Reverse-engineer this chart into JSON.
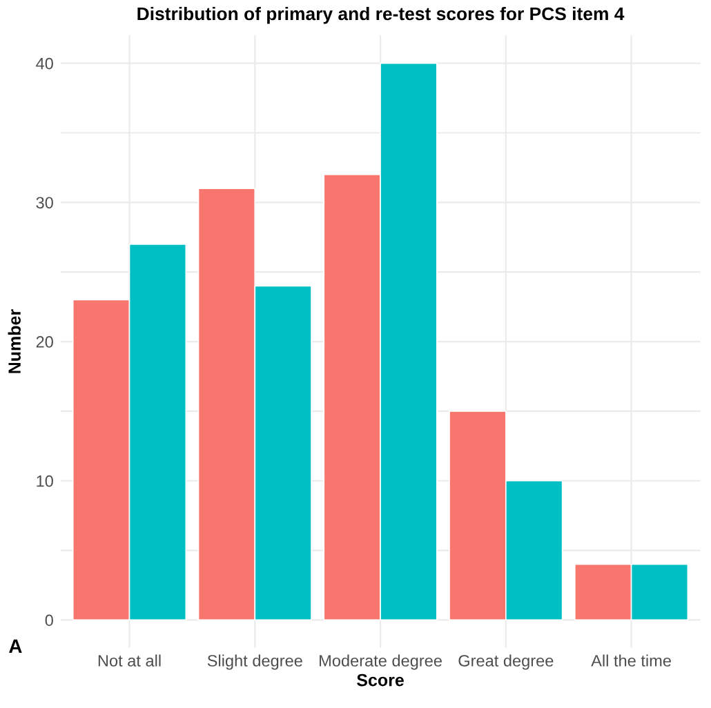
{
  "chart_data": {
    "type": "bar",
    "title": "Distribution of primary and re-test scores for PCS item 4",
    "xlabel": "Score",
    "ylabel": "Number",
    "categories": [
      "Not at all",
      "Slight degree",
      "Moderate degree",
      "Great degree",
      "All the time"
    ],
    "series": [
      {
        "color": "#f8766d",
        "values": [
          23,
          31,
          32,
          15,
          4
        ]
      },
      {
        "color": "#00bfc4",
        "values": [
          27,
          24,
          40,
          10,
          4
        ]
      }
    ],
    "ylim": [
      -2,
      42
    ],
    "yticks": [
      0,
      {
        "value": 5,
        "label": null
      },
      10,
      {
        "value": 15,
        "label": null
      },
      20,
      {
        "value": 25,
        "label": null
      },
      30,
      {
        "value": 35,
        "label": null
      },
      40
    ],
    "grid": true,
    "legend": false,
    "annotations": [
      "A"
    ]
  }
}
